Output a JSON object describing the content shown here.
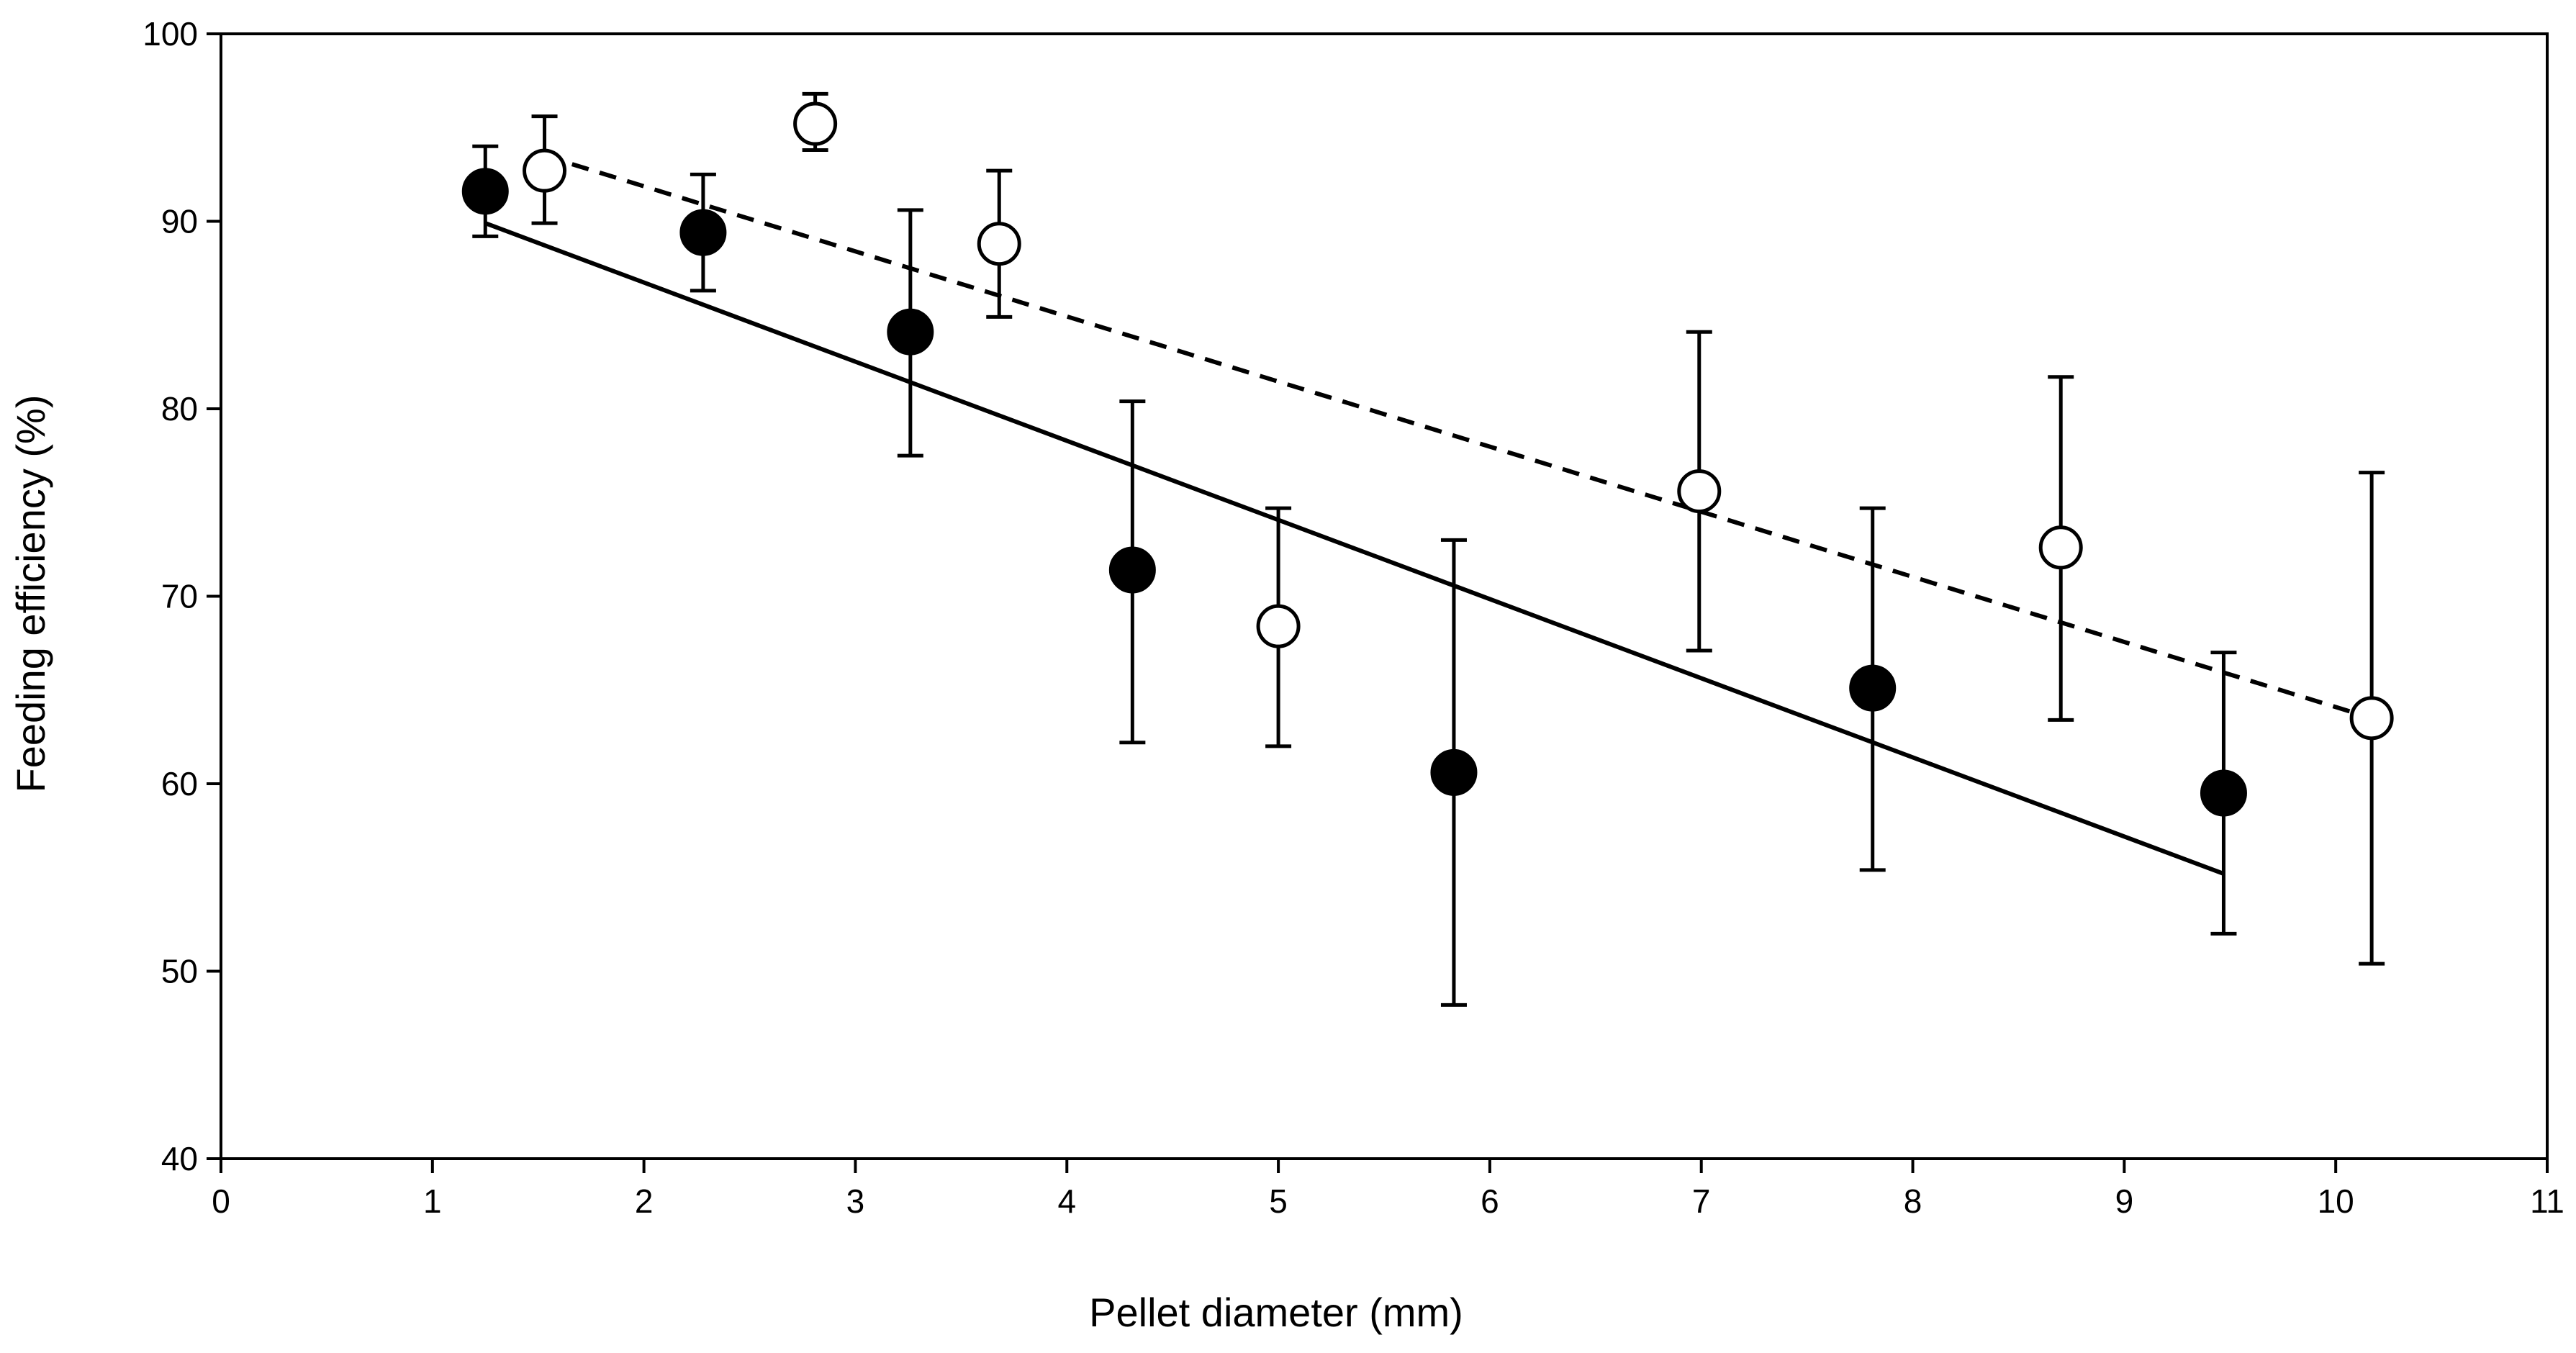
{
  "chart_data": {
    "type": "scatter",
    "title": "",
    "xlabel": "Pellet diameter (mm)",
    "ylabel": "Feeding efficiency (%)",
    "xlim": [
      0,
      11
    ],
    "ylim": [
      40,
      100
    ],
    "xticks": [
      0,
      1,
      2,
      3,
      4,
      5,
      6,
      7,
      8,
      9,
      10,
      11
    ],
    "yticks": [
      40,
      50,
      60,
      70,
      80,
      90,
      100
    ],
    "grid": false,
    "legend": "none",
    "series": [
      {
        "name": "filled",
        "marker": "filled-circle",
        "color": "#000000",
        "points": [
          {
            "x": 1.25,
            "y": 91.6,
            "err_low": 89.2,
            "err_high": 94.0
          },
          {
            "x": 2.28,
            "y": 89.4,
            "err_low": 86.3,
            "err_high": 92.5
          },
          {
            "x": 3.26,
            "y": 84.1,
            "err_low": 77.5,
            "err_high": 90.6
          },
          {
            "x": 4.31,
            "y": 71.4,
            "err_low": 62.2,
            "err_high": 80.4
          },
          {
            "x": 5.83,
            "y": 60.6,
            "err_low": 48.2,
            "err_high": 73.0
          },
          {
            "x": 7.81,
            "y": 65.1,
            "err_low": 55.4,
            "err_high": 74.7
          },
          {
            "x": 9.47,
            "y": 59.5,
            "err_low": 52.0,
            "err_high": 67.0
          }
        ],
        "trendline": {
          "style": "solid",
          "x": [
            1.25,
            9.47
          ],
          "y": [
            89.9,
            55.2
          ]
        }
      },
      {
        "name": "open",
        "marker": "open-circle",
        "color": "#000000",
        "points": [
          {
            "x": 1.53,
            "y": 92.7,
            "err_low": 89.9,
            "err_high": 95.6
          },
          {
            "x": 2.81,
            "y": 95.2,
            "err_low": 93.8,
            "err_high": 96.8
          },
          {
            "x": 3.68,
            "y": 88.8,
            "err_low": 84.9,
            "err_high": 92.7
          },
          {
            "x": 5.0,
            "y": 68.4,
            "err_low": 62.0,
            "err_high": 74.7
          },
          {
            "x": 6.99,
            "y": 75.6,
            "err_low": 67.1,
            "err_high": 84.1
          },
          {
            "x": 8.7,
            "y": 72.6,
            "err_low": 63.4,
            "err_high": 81.7
          },
          {
            "x": 10.17,
            "y": 63.5,
            "err_low": 50.4,
            "err_high": 76.6
          }
        ],
        "trendline": {
          "style": "dashed",
          "x": [
            1.53,
            10.17
          ],
          "y": [
            93.5,
            63.5
          ]
        }
      }
    ]
  }
}
